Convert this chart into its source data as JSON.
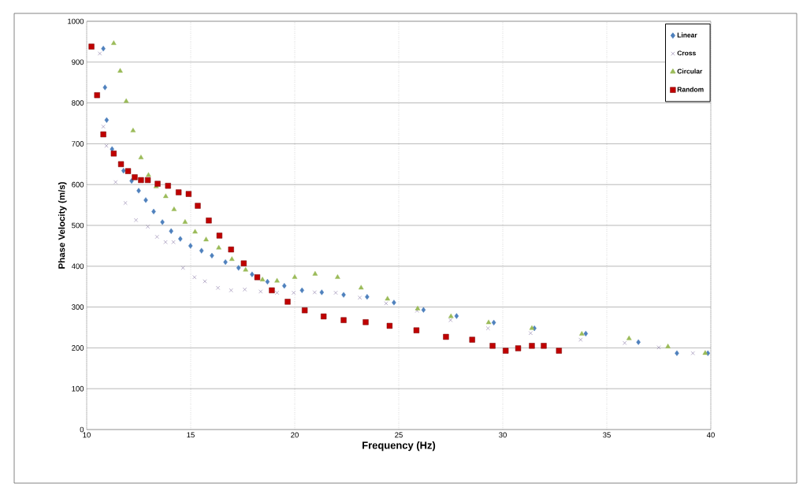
{
  "chart_data": {
    "type": "scatter",
    "xlabel": "Frequency (Hz)",
    "ylabel": "Phase Velocity (m/s)",
    "xlim": [
      10,
      40
    ],
    "ylim": [
      0,
      1000
    ],
    "xticks": [
      10,
      15,
      20,
      25,
      30,
      35,
      40
    ],
    "yticks": [
      0,
      100,
      200,
      300,
      400,
      500,
      600,
      700,
      800,
      900,
      1000
    ],
    "grid": true,
    "legend": "top right",
    "series": [
      {
        "name": "Linear",
        "color": "#4f81bd",
        "marker": "diamond",
        "x": [
          10.8,
          10.88,
          10.96,
          11.22,
          11.77,
          12.16,
          12.5,
          12.84,
          13.22,
          13.64,
          14.06,
          14.5,
          14.99,
          15.52,
          16.02,
          16.67,
          17.3,
          17.95,
          18.69,
          19.5,
          20.35,
          21.3,
          22.35,
          23.48,
          24.77,
          26.19,
          27.78,
          29.57,
          31.52,
          33.99,
          36.52,
          38.37,
          39.86
        ],
        "values": [
          933,
          838,
          758,
          687,
          634,
          609,
          585,
          562,
          534,
          508,
          486,
          467,
          450,
          438,
          426,
          410,
          396,
          380,
          362,
          352,
          341,
          336,
          330,
          325,
          311,
          293,
          278,
          262,
          248,
          235,
          214,
          187,
          187
        ]
      },
      {
        "name": "Cross",
        "color": "#8c7ca8",
        "marker": "cross",
        "x": [
          10.63,
          10.8,
          10.95,
          11.39,
          11.86,
          12.37,
          12.94,
          13.38,
          13.79,
          14.17,
          14.63,
          15.18,
          15.68,
          16.31,
          16.94,
          17.6,
          18.36,
          19.15,
          19.95,
          20.96,
          21.97,
          23.13,
          24.39,
          25.88,
          27.49,
          29.29,
          31.34,
          33.74,
          35.86,
          37.5,
          39.14
        ],
        "values": [
          921,
          742,
          695,
          606,
          555,
          513,
          497,
          472,
          459,
          459,
          396,
          373,
          363,
          347,
          341,
          343,
          338,
          335,
          335,
          336,
          335,
          323,
          309,
          291,
          268,
          248,
          236,
          220,
          212,
          201,
          187
        ]
      },
      {
        "name": "Circular",
        "color": "#9bbb59",
        "marker": "triangle",
        "x": [
          11.3,
          11.61,
          11.9,
          12.23,
          12.61,
          12.97,
          13.34,
          13.8,
          14.2,
          14.73,
          15.21,
          15.74,
          16.35,
          16.98,
          17.64,
          18.45,
          19.15,
          20.0,
          20.98,
          22.06,
          23.19,
          24.46,
          25.91,
          27.51,
          29.32,
          31.4,
          33.8,
          36.07,
          37.94,
          39.73
        ],
        "values": [
          946,
          878,
          804,
          732,
          666,
          623,
          595,
          571,
          539,
          508,
          484,
          465,
          445,
          417,
          391,
          367,
          364,
          373,
          381,
          373,
          347,
          320,
          296,
          277,
          262,
          248,
          234,
          223,
          203,
          187
        ]
      },
      {
        "name": "Random",
        "color": "#c00000",
        "marker": "square",
        "x": [
          10.23,
          10.5,
          10.8,
          11.3,
          11.65,
          11.99,
          12.31,
          12.61,
          12.94,
          13.41,
          13.91,
          14.42,
          14.9,
          15.34,
          15.87,
          16.38,
          16.94,
          17.55,
          18.2,
          18.9,
          19.66,
          20.48,
          21.39,
          22.35,
          23.41,
          24.56,
          25.85,
          27.27,
          28.53,
          29.51,
          30.14,
          30.74,
          31.4,
          31.97,
          32.7
        ],
        "values": [
          938,
          819,
          723,
          676,
          650,
          633,
          618,
          611,
          611,
          602,
          597,
          581,
          577,
          548,
          512,
          475,
          441,
          407,
          373,
          341,
          313,
          292,
          277,
          268,
          263,
          254,
          243,
          227,
          220,
          205,
          193,
          199,
          205,
          205,
          193
        ]
      }
    ]
  }
}
